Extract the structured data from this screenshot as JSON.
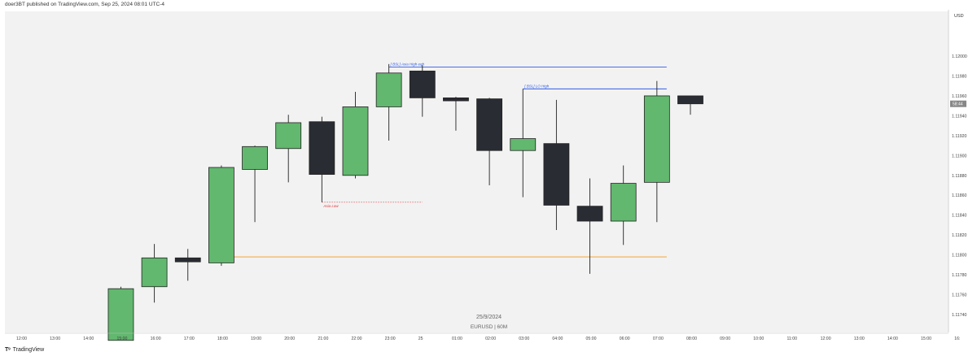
{
  "header": {
    "attribution": "doer3BT published on TradingView.com, Sep 25, 2024 08:01 UTC-4"
  },
  "footer": {
    "brand": "TradingView"
  },
  "colors": {
    "bull": "#62b86e",
    "bear": "#2a2c33",
    "pane_bg": "#f2f2f2",
    "blue_level": "#2f5ce8",
    "orange_level": "#f39a1a",
    "red_label": "#e0333a"
  },
  "chart_data": {
    "type": "candlestick",
    "symbol_watermark": "EURUSD | 60M",
    "date_watermark": "25/9/2024",
    "currency": "USD",
    "price_label": "58:44",
    "ylim": [
      1.11722,
      1.12045
    ],
    "y_ticks": [
      "1.12000",
      "1.11980",
      "1.11960",
      "1.11940",
      "1.11920",
      "1.11900",
      "1.11880",
      "1.11860",
      "1.11840",
      "1.11820",
      "1.11800",
      "1.11780",
      "1.11760",
      "1.11740"
    ],
    "x_ticks": [
      "12:00",
      "13:00",
      "14:00",
      "15:00",
      "16:00",
      "17:00",
      "18:00",
      "19:00",
      "20:00",
      "21:00",
      "22:00",
      "23:00",
      "25",
      "01:00",
      "02:00",
      "03:00",
      "04:00",
      "05:00",
      "06:00",
      "07:00",
      "08:00",
      "09:00",
      "10:00",
      "11:00",
      "12:00",
      "13:00",
      "14:00",
      "15:00",
      "16:"
    ],
    "candles": [
      {
        "time": "15:00",
        "open": 1.11714,
        "high": 1.11768,
        "low": 1.11714,
        "close": 1.11766
      },
      {
        "time": "16:00",
        "open": 1.11768,
        "high": 1.11811,
        "low": 1.11752,
        "close": 1.11797
      },
      {
        "time": "17:00",
        "open": 1.11797,
        "high": 1.11806,
        "low": 1.11774,
        "close": 1.11793
      },
      {
        "time": "18:00",
        "open": 1.11792,
        "high": 1.1189,
        "low": 1.11789,
        "close": 1.11888
      },
      {
        "time": "19:00",
        "open": 1.11886,
        "high": 1.1191,
        "low": 1.11833,
        "close": 1.11909
      },
      {
        "time": "20:00",
        "open": 1.11907,
        "high": 1.11941,
        "low": 1.11873,
        "close": 1.11933
      },
      {
        "time": "21:00",
        "open": 1.11934,
        "high": 1.11939,
        "low": 1.11853,
        "close": 1.11881
      },
      {
        "time": "22:00",
        "open": 1.1188,
        "high": 1.11964,
        "low": 1.11877,
        "close": 1.11949
      },
      {
        "time": "23:00",
        "open": 1.11949,
        "high": 1.11992,
        "low": 1.11915,
        "close": 1.11983
      },
      {
        "time": "00:00",
        "open": 1.11985,
        "high": 1.11991,
        "low": 1.11939,
        "close": 1.11958
      },
      {
        "time": "01:00",
        "open": 1.11958,
        "high": 1.11959,
        "low": 1.11925,
        "close": 1.11955
      },
      {
        "time": "02:00",
        "open": 1.11957,
        "high": 1.11958,
        "low": 1.1187,
        "close": 1.11905
      },
      {
        "time": "03:00",
        "open": 1.11905,
        "high": 1.11967,
        "low": 1.11858,
        "close": 1.11917
      },
      {
        "time": "04:00",
        "open": 1.11912,
        "high": 1.11956,
        "low": 1.11825,
        "close": 1.1185
      },
      {
        "time": "05:00",
        "open": 1.11849,
        "high": 1.11877,
        "low": 1.11781,
        "close": 1.11834
      },
      {
        "time": "06:00",
        "open": 1.11834,
        "high": 1.1189,
        "low": 1.1181,
        "close": 1.11872
      },
      {
        "time": "07:00",
        "open": 1.11873,
        "high": 1.11975,
        "low": 1.11833,
        "close": 1.1196
      },
      {
        "time": "08:00",
        "open": 1.1196,
        "high": 1.1196,
        "low": 1.11941,
        "close": 1.11952
      }
    ],
    "levels": [
      {
        "label": "[ BSL] Asia High eqh",
        "price": 1.11989,
        "from": "23:00",
        "to": "07:00",
        "color": "#2f5ce8"
      },
      {
        "label": "[ BSL] LO High",
        "price": 1.11967,
        "from": "03:00",
        "to": "07:00",
        "color": "#2f5ce8"
      },
      {
        "label": "Asia Low",
        "price": 1.11853,
        "from": "21:00",
        "to": "00:00",
        "color": "#e0333a",
        "dotted": true
      },
      {
        "label": "",
        "price": 1.11798,
        "from": "18:00",
        "to": "07:00",
        "color": "#f39a1a"
      }
    ],
    "grid": false
  }
}
